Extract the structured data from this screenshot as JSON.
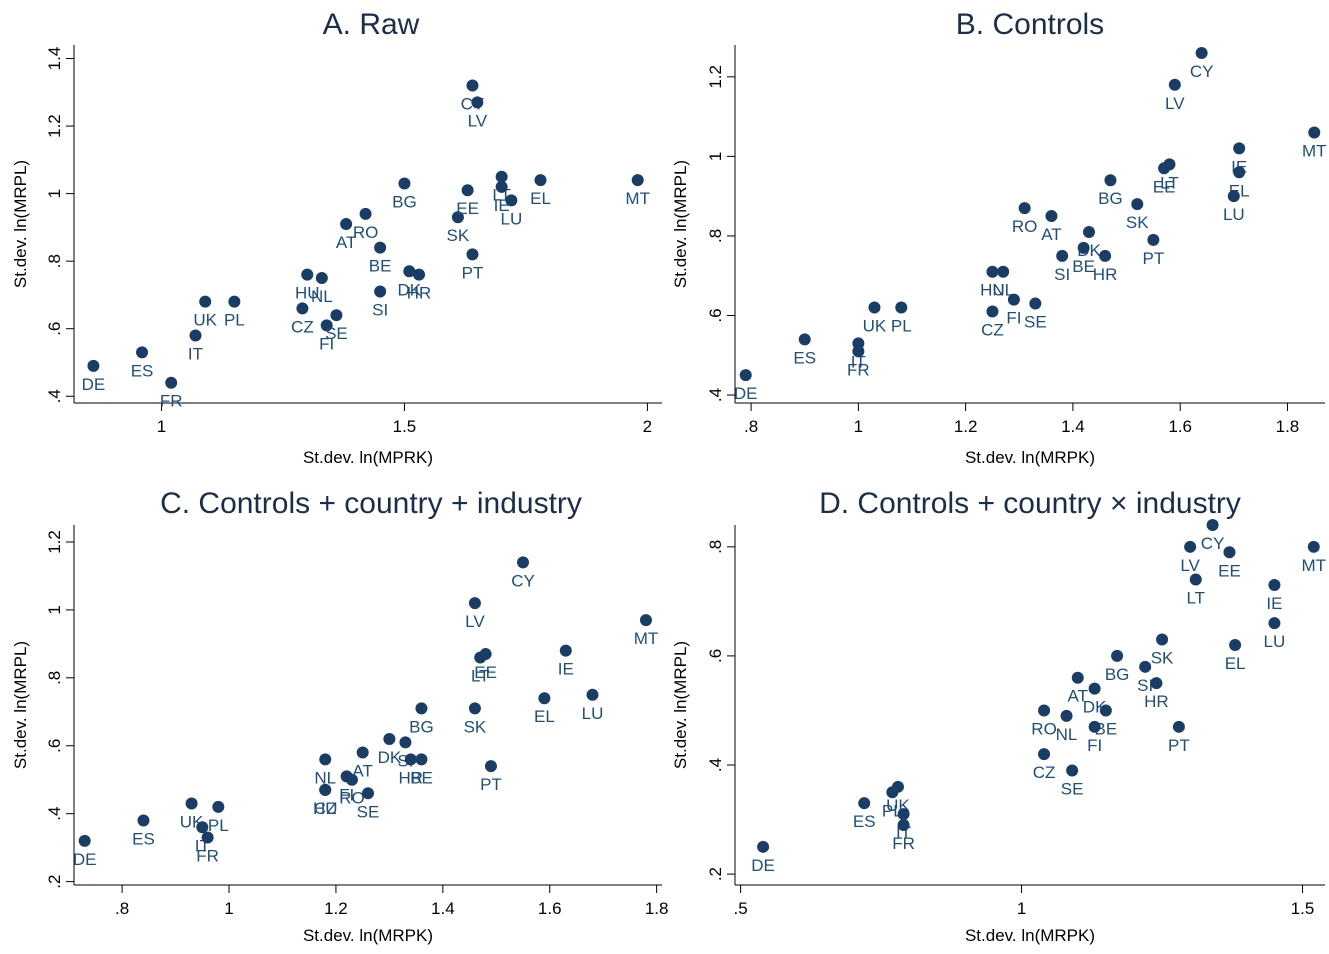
{
  "colors": {
    "marker": "#1a3d66",
    "label": "#1f4e79",
    "title": "#1a2d4a"
  },
  "chart_data": [
    {
      "type": "scatter",
      "title": "A. Raw",
      "xlabel": "St.dev. ln(MPRK)",
      "ylabel": "St.dev. ln(MRPL)",
      "xlim": [
        0.82,
        2.03
      ],
      "ylim": [
        0.38,
        1.44
      ],
      "xticks": [
        {
          "v": 1,
          "label": "1"
        },
        {
          "v": 1.5,
          "label": "1.5"
        },
        {
          "v": 2,
          "label": "2"
        }
      ],
      "yticks": [
        {
          "v": 0.4,
          "label": ".4"
        },
        {
          "v": 0.6,
          "label": ".6"
        },
        {
          "v": 0.8,
          "label": ".8"
        },
        {
          "v": 1.0,
          "label": "1"
        },
        {
          "v": 1.2,
          "label": "1.2"
        },
        {
          "v": 1.4,
          "label": "1.4"
        }
      ],
      "points": [
        {
          "label": "DE",
          "x": 0.86,
          "y": 0.49
        },
        {
          "label": "ES",
          "x": 0.96,
          "y": 0.53
        },
        {
          "label": "FR",
          "x": 1.02,
          "y": 0.44
        },
        {
          "label": "IT",
          "x": 1.07,
          "y": 0.58
        },
        {
          "label": "UK",
          "x": 1.09,
          "y": 0.68
        },
        {
          "label": "PL",
          "x": 1.15,
          "y": 0.68
        },
        {
          "label": "HU",
          "x": 1.3,
          "y": 0.76
        },
        {
          "label": "NL",
          "x": 1.33,
          "y": 0.75
        },
        {
          "label": "CZ",
          "x": 1.29,
          "y": 0.66
        },
        {
          "label": "FI",
          "x": 1.34,
          "y": 0.61
        },
        {
          "label": "SE",
          "x": 1.36,
          "y": 0.64
        },
        {
          "label": "SI",
          "x": 1.45,
          "y": 0.71
        },
        {
          "label": "BE",
          "x": 1.45,
          "y": 0.84
        },
        {
          "label": "DK",
          "x": 1.51,
          "y": 0.77
        },
        {
          "label": "HR",
          "x": 1.53,
          "y": 0.76
        },
        {
          "label": "AT",
          "x": 1.38,
          "y": 0.91
        },
        {
          "label": "RO",
          "x": 1.42,
          "y": 0.94
        },
        {
          "label": "BG",
          "x": 1.5,
          "y": 1.03
        },
        {
          "label": "SK",
          "x": 1.61,
          "y": 0.93
        },
        {
          "label": "PT",
          "x": 1.64,
          "y": 0.82
        },
        {
          "label": "EE",
          "x": 1.63,
          "y": 1.01
        },
        {
          "label": "LT",
          "x": 1.7,
          "y": 1.05
        },
        {
          "label": "IE",
          "x": 1.7,
          "y": 1.02
        },
        {
          "label": "LU",
          "x": 1.72,
          "y": 0.98
        },
        {
          "label": "EL",
          "x": 1.78,
          "y": 1.04
        },
        {
          "label": "CY",
          "x": 1.64,
          "y": 1.32
        },
        {
          "label": "LV",
          "x": 1.65,
          "y": 1.27
        },
        {
          "label": "MT",
          "x": 1.98,
          "y": 1.04
        }
      ]
    },
    {
      "type": "scatter",
      "title": "B. Controls",
      "xlabel": "St.dev. ln(MRPK)",
      "ylabel": "St.dev. ln(MRPL)",
      "xlim": [
        0.77,
        1.87
      ],
      "ylim": [
        0.38,
        1.28
      ],
      "xticks": [
        {
          "v": 0.8,
          "label": ".8"
        },
        {
          "v": 1.0,
          "label": "1"
        },
        {
          "v": 1.2,
          "label": "1.2"
        },
        {
          "v": 1.4,
          "label": "1.4"
        },
        {
          "v": 1.6,
          "label": "1.6"
        },
        {
          "v": 1.8,
          "label": "1.8"
        }
      ],
      "yticks": [
        {
          "v": 0.4,
          "label": ".4"
        },
        {
          "v": 0.6,
          "label": ".6"
        },
        {
          "v": 0.8,
          "label": ".8"
        },
        {
          "v": 1.0,
          "label": "1"
        },
        {
          "v": 1.2,
          "label": "1.2"
        }
      ],
      "points": [
        {
          "label": "DE",
          "x": 0.79,
          "y": 0.45
        },
        {
          "label": "ES",
          "x": 0.9,
          "y": 0.54
        },
        {
          "label": "FR",
          "x": 1.0,
          "y": 0.51
        },
        {
          "label": "IT",
          "x": 1.0,
          "y": 0.53
        },
        {
          "label": "UK",
          "x": 1.03,
          "y": 0.62
        },
        {
          "label": "PL",
          "x": 1.08,
          "y": 0.62
        },
        {
          "label": "HU",
          "x": 1.25,
          "y": 0.71
        },
        {
          "label": "NL",
          "x": 1.27,
          "y": 0.71
        },
        {
          "label": "CZ",
          "x": 1.25,
          "y": 0.61
        },
        {
          "label": "FI",
          "x": 1.29,
          "y": 0.64
        },
        {
          "label": "SE",
          "x": 1.33,
          "y": 0.63
        },
        {
          "label": "RO",
          "x": 1.31,
          "y": 0.87
        },
        {
          "label": "AT",
          "x": 1.36,
          "y": 0.85
        },
        {
          "label": "SI",
          "x": 1.38,
          "y": 0.75
        },
        {
          "label": "DK",
          "x": 1.43,
          "y": 0.81
        },
        {
          "label": "BE",
          "x": 1.42,
          "y": 0.77
        },
        {
          "label": "HR",
          "x": 1.46,
          "y": 0.75
        },
        {
          "label": "BG",
          "x": 1.47,
          "y": 0.94
        },
        {
          "label": "SK",
          "x": 1.52,
          "y": 0.88
        },
        {
          "label": "PT",
          "x": 1.55,
          "y": 0.79
        },
        {
          "label": "LT",
          "x": 1.58,
          "y": 0.98
        },
        {
          "label": "EE",
          "x": 1.57,
          "y": 0.97
        },
        {
          "label": "IE",
          "x": 1.71,
          "y": 1.02
        },
        {
          "label": "EL",
          "x": 1.71,
          "y": 0.96
        },
        {
          "label": "LU",
          "x": 1.7,
          "y": 0.9
        },
        {
          "label": "CY",
          "x": 1.64,
          "y": 1.26
        },
        {
          "label": "LV",
          "x": 1.59,
          "y": 1.18
        },
        {
          "label": "MT",
          "x": 1.85,
          "y": 1.06
        }
      ]
    },
    {
      "type": "scatter",
      "title": "C. Controls + country + industry",
      "xlabel": "St.dev. ln(MRPK)",
      "ylabel": "St.dev. ln(MRPL)",
      "xlim": [
        0.71,
        1.81
      ],
      "ylim": [
        0.19,
        1.25
      ],
      "xticks": [
        {
          "v": 0.8,
          "label": ".8"
        },
        {
          "v": 1.0,
          "label": "1"
        },
        {
          "v": 1.2,
          "label": "1.2"
        },
        {
          "v": 1.4,
          "label": "1.4"
        },
        {
          "v": 1.6,
          "label": "1.6"
        },
        {
          "v": 1.8,
          "label": "1.8"
        }
      ],
      "yticks": [
        {
          "v": 0.2,
          "label": ".2"
        },
        {
          "v": 0.4,
          "label": ".4"
        },
        {
          "v": 0.6,
          "label": ".6"
        },
        {
          "v": 0.8,
          "label": ".8"
        },
        {
          "v": 1.0,
          "label": "1"
        },
        {
          "v": 1.2,
          "label": "1.2"
        }
      ],
      "points": [
        {
          "label": "DE",
          "x": 0.73,
          "y": 0.32
        },
        {
          "label": "ES",
          "x": 0.84,
          "y": 0.38
        },
        {
          "label": "UK",
          "x": 0.93,
          "y": 0.43
        },
        {
          "label": "PL",
          "x": 0.98,
          "y": 0.42
        },
        {
          "label": "IT",
          "x": 0.95,
          "y": 0.36
        },
        {
          "label": "FR",
          "x": 0.96,
          "y": 0.33
        },
        {
          "label": "HU",
          "x": 1.18,
          "y": 0.47
        },
        {
          "label": "CZ",
          "x": 1.18,
          "y": 0.47
        },
        {
          "label": "NL",
          "x": 1.18,
          "y": 0.56
        },
        {
          "label": "FI",
          "x": 1.22,
          "y": 0.51
        },
        {
          "label": "RO",
          "x": 1.23,
          "y": 0.5
        },
        {
          "label": "SE",
          "x": 1.26,
          "y": 0.46
        },
        {
          "label": "AT",
          "x": 1.25,
          "y": 0.58
        },
        {
          "label": "DK",
          "x": 1.3,
          "y": 0.62
        },
        {
          "label": "SI",
          "x": 1.33,
          "y": 0.61
        },
        {
          "label": "HR",
          "x": 1.34,
          "y": 0.56
        },
        {
          "label": "BG",
          "x": 1.36,
          "y": 0.71
        },
        {
          "label": "BE",
          "x": 1.36,
          "y": 0.56
        },
        {
          "label": "SK",
          "x": 1.46,
          "y": 0.71
        },
        {
          "label": "PT",
          "x": 1.49,
          "y": 0.54
        },
        {
          "label": "LT",
          "x": 1.47,
          "y": 0.86
        },
        {
          "label": "EE",
          "x": 1.48,
          "y": 0.87
        },
        {
          "label": "LV",
          "x": 1.46,
          "y": 1.02
        },
        {
          "label": "CY",
          "x": 1.55,
          "y": 1.14
        },
        {
          "label": "IE",
          "x": 1.63,
          "y": 0.88
        },
        {
          "label": "EL",
          "x": 1.59,
          "y": 0.74
        },
        {
          "label": "LU",
          "x": 1.68,
          "y": 0.75
        },
        {
          "label": "MT",
          "x": 1.78,
          "y": 0.97
        }
      ]
    },
    {
      "type": "scatter",
      "title": "D. Controls + country × industry",
      "xlabel": "St.dev. ln(MRPK)",
      "ylabel": "St.dev. ln(MRPL)",
      "xlim": [
        0.49,
        1.54
      ],
      "ylim": [
        0.18,
        0.84
      ],
      "xticks": [
        {
          "v": 0.5,
          "label": ".5"
        },
        {
          "v": 1.0,
          "label": "1"
        },
        {
          "v": 1.5,
          "label": "1.5"
        }
      ],
      "yticks": [
        {
          "v": 0.2,
          "label": ".2"
        },
        {
          "v": 0.4,
          "label": ".4"
        },
        {
          "v": 0.6,
          "label": ".6"
        },
        {
          "v": 0.8,
          "label": ".8"
        }
      ],
      "points": [
        {
          "label": "DE",
          "x": 0.54,
          "y": 0.25
        },
        {
          "label": "ES",
          "x": 0.72,
          "y": 0.33
        },
        {
          "label": "PL",
          "x": 0.77,
          "y": 0.35
        },
        {
          "label": "UK",
          "x": 0.78,
          "y": 0.36
        },
        {
          "label": "IT",
          "x": 0.79,
          "y": 0.31
        },
        {
          "label": "FR",
          "x": 0.79,
          "y": 0.29
        },
        {
          "label": "RO",
          "x": 1.04,
          "y": 0.5
        },
        {
          "label": "CZ",
          "x": 1.04,
          "y": 0.42
        },
        {
          "label": "NL",
          "x": 1.08,
          "y": 0.49
        },
        {
          "label": "AT",
          "x": 1.1,
          "y": 0.56
        },
        {
          "label": "SE",
          "x": 1.09,
          "y": 0.39
        },
        {
          "label": "DK",
          "x": 1.13,
          "y": 0.54
        },
        {
          "label": "BE",
          "x": 1.15,
          "y": 0.5
        },
        {
          "label": "FI",
          "x": 1.13,
          "y": 0.47
        },
        {
          "label": "BG",
          "x": 1.17,
          "y": 0.6
        },
        {
          "label": "SI",
          "x": 1.22,
          "y": 0.58
        },
        {
          "label": "SK",
          "x": 1.25,
          "y": 0.63
        },
        {
          "label": "HR",
          "x": 1.24,
          "y": 0.55
        },
        {
          "label": "PT",
          "x": 1.28,
          "y": 0.47
        },
        {
          "label": "LV",
          "x": 1.3,
          "y": 0.8
        },
        {
          "label": "CY",
          "x": 1.34,
          "y": 0.84
        },
        {
          "label": "LT",
          "x": 1.31,
          "y": 0.74
        },
        {
          "label": "EE",
          "x": 1.37,
          "y": 0.79
        },
        {
          "label": "EL",
          "x": 1.38,
          "y": 0.62
        },
        {
          "label": "IE",
          "x": 1.45,
          "y": 0.73
        },
        {
          "label": "LU",
          "x": 1.45,
          "y": 0.66
        },
        {
          "label": "MT",
          "x": 1.52,
          "y": 0.8
        }
      ]
    }
  ]
}
